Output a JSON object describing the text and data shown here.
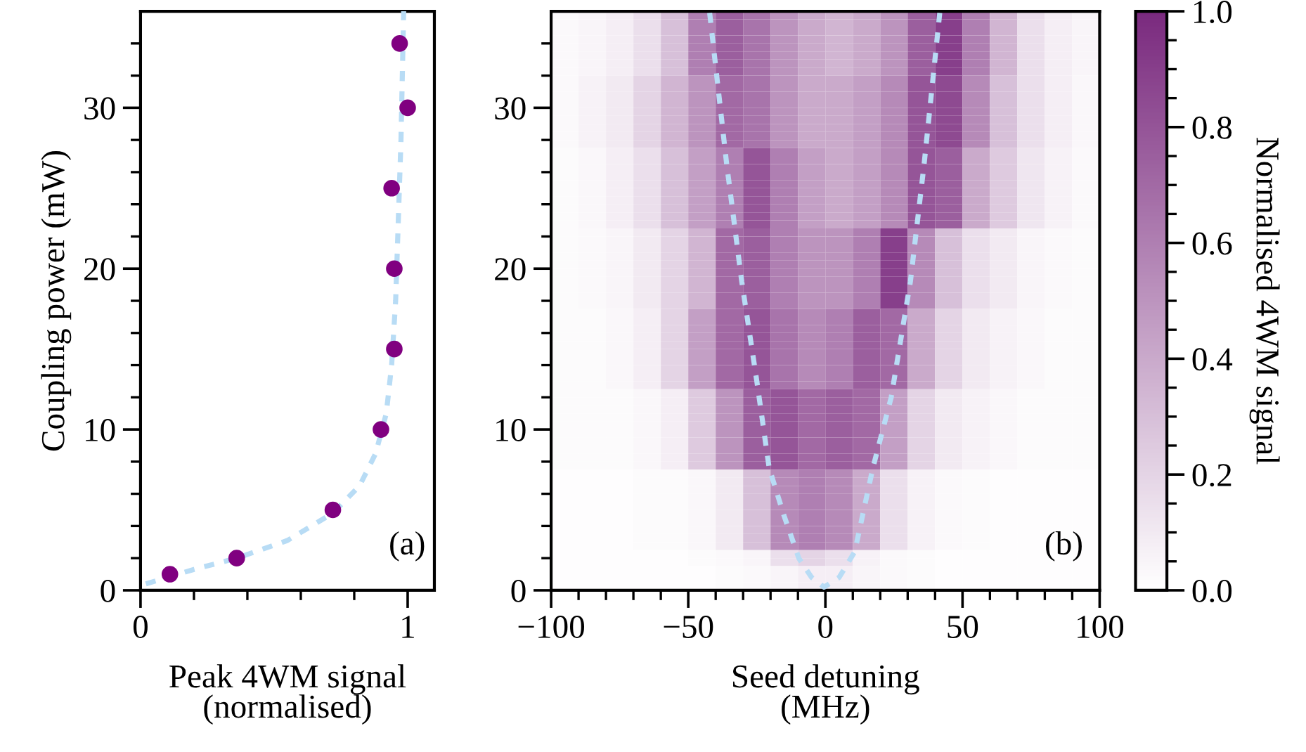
{
  "chart_data": [
    {
      "type": "scatter",
      "xlabel": "Peak 4WM signal\n(normalised)",
      "ylabel": "Coupling power (mW)",
      "annotations": [
        "(a)"
      ],
      "xlim": [
        0,
        1.1
      ],
      "ylim": [
        0,
        36
      ],
      "xticks": [
        0,
        {
          "value": 0.2,
          "label": null
        },
        {
          "value": 0.4,
          "label": null
        },
        {
          "value": 0.6,
          "label": null
        },
        {
          "value": 0.8,
          "label": null
        },
        1
      ],
      "yticks": [
        0,
        {
          "value": 2,
          "label": null
        },
        {
          "value": 4,
          "label": null
        },
        {
          "value": 6,
          "label": null
        },
        {
          "value": 8,
          "label": null
        },
        10,
        {
          "value": 12,
          "label": null
        },
        {
          "value": 14,
          "label": null
        },
        {
          "value": 16,
          "label": null
        },
        {
          "value": 18,
          "label": null
        },
        20,
        {
          "value": 22,
          "label": null
        },
        {
          "value": 24,
          "label": null
        },
        {
          "value": 26,
          "label": null
        },
        {
          "value": 28,
          "label": null
        },
        30,
        {
          "value": 32,
          "label": null
        },
        {
          "value": 34,
          "label": null
        }
      ],
      "series": [
        {
          "type": "line",
          "line_style": "dashed",
          "color": "#b8dcf5",
          "x": [
            0.02,
            0.2,
            0.36,
            0.55,
            0.72,
            0.82,
            0.88,
            0.92,
            0.94,
            0.955,
            0.965,
            0.975,
            0.98,
            0.985
          ],
          "values": [
            0.4,
            1.3,
            2.0,
            3.1,
            4.8,
            6.5,
            8.5,
            11,
            14,
            18,
            23,
            28,
            32,
            36
          ]
        },
        {
          "type": "scatter",
          "marker": "circle",
          "color": "#800080",
          "x": [
            0.11,
            0.36,
            0.72,
            0.9,
            0.95,
            0.95,
            0.94,
            1.0,
            0.97
          ],
          "values": [
            1,
            2,
            5,
            10,
            15,
            20,
            25,
            30,
            34
          ]
        }
      ]
    },
    {
      "type": "heatmap",
      "xlabel": "Seed detuning\n(MHz)",
      "clabel": "Normalised 4WM signal",
      "annotations": [
        "(b)"
      ],
      "xlim": [
        -100,
        100
      ],
      "ylim": [
        0,
        36
      ],
      "clim": [
        0,
        1
      ],
      "colors": [
        "#ffffff",
        "#7a2a7e"
      ],
      "xticks": [
        {
          "value": -100,
          "label": "−100"
        },
        {
          "value": -90,
          "label": null
        },
        {
          "value": -80,
          "label": null
        },
        {
          "value": -70,
          "label": null
        },
        {
          "value": -60,
          "label": null
        },
        {
          "value": -50,
          "label": "−50"
        },
        {
          "value": -40,
          "label": null
        },
        {
          "value": -30,
          "label": null
        },
        {
          "value": -20,
          "label": null
        },
        {
          "value": -10,
          "label": null
        },
        0,
        {
          "value": 10,
          "label": null
        },
        {
          "value": 20,
          "label": null
        },
        {
          "value": 30,
          "label": null
        },
        {
          "value": 40,
          "label": null
        },
        50,
        {
          "value": 60,
          "label": null
        },
        {
          "value": 70,
          "label": null
        },
        {
          "value": 80,
          "label": null
        },
        {
          "value": 90,
          "label": null
        },
        100
      ],
      "yticks": [
        0,
        {
          "value": 2,
          "label": null
        },
        {
          "value": 4,
          "label": null
        },
        {
          "value": 6,
          "label": null
        },
        {
          "value": 8,
          "label": null
        },
        10,
        {
          "value": 12,
          "label": null
        },
        {
          "value": 14,
          "label": null
        },
        {
          "value": 16,
          "label": null
        },
        {
          "value": 18,
          "label": null
        },
        20,
        {
          "value": 22,
          "label": null
        },
        {
          "value": 24,
          "label": null
        },
        {
          "value": 26,
          "label": null
        },
        {
          "value": 28,
          "label": null
        },
        30,
        {
          "value": 32,
          "label": null
        },
        {
          "value": 34,
          "label": null
        }
      ],
      "cticks": [
        {
          "value": 0,
          "label": "0.0"
        },
        {
          "value": 0.05,
          "label": null
        },
        {
          "value": 0.1,
          "label": null
        },
        {
          "value": 0.15,
          "label": null
        },
        {
          "value": 0.2,
          "label": "0.2"
        },
        {
          "value": 0.25,
          "label": null
        },
        {
          "value": 0.3,
          "label": null
        },
        {
          "value": 0.35,
          "label": null
        },
        {
          "value": 0.4,
          "label": "0.4"
        },
        {
          "value": 0.45,
          "label": null
        },
        {
          "value": 0.5,
          "label": null
        },
        {
          "value": 0.55,
          "label": null
        },
        {
          "value": 0.6,
          "label": "0.6"
        },
        {
          "value": 0.65,
          "label": null
        },
        {
          "value": 0.7,
          "label": null
        },
        {
          "value": 0.75,
          "label": null
        },
        {
          "value": 0.8,
          "label": "0.8"
        },
        {
          "value": 0.85,
          "label": null
        },
        {
          "value": 0.9,
          "label": null
        },
        {
          "value": 0.95,
          "label": null
        },
        {
          "value": 1.0,
          "label": "1.0"
        }
      ],
      "x": [
        -95,
        -85,
        -75,
        -65,
        -55,
        -45,
        -35,
        -25,
        -15,
        -5,
        5,
        15,
        25,
        35,
        45,
        55,
        65,
        75,
        85,
        95
      ],
      "cells": [
        [
          0.03,
          0.05,
          0.08,
          0.15,
          0.3,
          0.6,
          0.75,
          0.65,
          0.5,
          0.4,
          0.35,
          0.4,
          0.5,
          0.75,
          0.9,
          0.6,
          0.35,
          0.15,
          0.08,
          0.05
        ],
        [
          0.03,
          0.05,
          0.08,
          0.15,
          0.3,
          0.6,
          0.75,
          0.65,
          0.5,
          0.4,
          0.35,
          0.4,
          0.5,
          0.75,
          0.9,
          0.6,
          0.35,
          0.15,
          0.08,
          0.05
        ],
        [
          0.03,
          0.05,
          0.08,
          0.15,
          0.3,
          0.6,
          0.75,
          0.65,
          0.5,
          0.4,
          0.35,
          0.4,
          0.5,
          0.75,
          0.9,
          0.6,
          0.35,
          0.15,
          0.08,
          0.05
        ],
        [
          0.03,
          0.05,
          0.08,
          0.15,
          0.3,
          0.6,
          0.75,
          0.65,
          0.5,
          0.4,
          0.35,
          0.4,
          0.5,
          0.75,
          0.9,
          0.6,
          0.35,
          0.15,
          0.08,
          0.05
        ],
        [
          0.03,
          0.05,
          0.08,
          0.15,
          0.3,
          0.6,
          0.75,
          0.65,
          0.5,
          0.4,
          0.35,
          0.4,
          0.5,
          0.75,
          0.9,
          0.6,
          0.35,
          0.15,
          0.08,
          0.05
        ],
        [
          0.03,
          0.05,
          0.08,
          0.15,
          0.3,
          0.6,
          0.75,
          0.65,
          0.5,
          0.4,
          0.35,
          0.4,
          0.5,
          0.75,
          0.9,
          0.6,
          0.35,
          0.15,
          0.08,
          0.05
        ],
        [
          0.03,
          0.05,
          0.08,
          0.15,
          0.3,
          0.6,
          0.75,
          0.65,
          0.5,
          0.4,
          0.35,
          0.4,
          0.5,
          0.75,
          0.9,
          0.6,
          0.35,
          0.15,
          0.08,
          0.05
        ],
        [
          0.03,
          0.05,
          0.08,
          0.15,
          0.3,
          0.6,
          0.75,
          0.65,
          0.5,
          0.4,
          0.35,
          0.4,
          0.5,
          0.75,
          0.9,
          0.6,
          0.35,
          0.15,
          0.08,
          0.05
        ],
        [
          0.03,
          0.06,
          0.1,
          0.2,
          0.35,
          0.5,
          0.7,
          0.65,
          0.5,
          0.4,
          0.4,
          0.45,
          0.55,
          0.8,
          0.85,
          0.55,
          0.3,
          0.15,
          0.08,
          0.04
        ],
        [
          0.03,
          0.06,
          0.1,
          0.2,
          0.35,
          0.5,
          0.7,
          0.65,
          0.5,
          0.4,
          0.4,
          0.45,
          0.55,
          0.8,
          0.85,
          0.55,
          0.3,
          0.15,
          0.08,
          0.04
        ],
        [
          0.03,
          0.06,
          0.1,
          0.2,
          0.35,
          0.5,
          0.7,
          0.65,
          0.5,
          0.4,
          0.4,
          0.45,
          0.55,
          0.8,
          0.85,
          0.55,
          0.3,
          0.15,
          0.08,
          0.04
        ],
        [
          0.03,
          0.06,
          0.1,
          0.2,
          0.35,
          0.5,
          0.7,
          0.65,
          0.5,
          0.4,
          0.4,
          0.45,
          0.55,
          0.8,
          0.85,
          0.55,
          0.3,
          0.15,
          0.08,
          0.04
        ],
        [
          0.03,
          0.06,
          0.1,
          0.2,
          0.35,
          0.5,
          0.7,
          0.65,
          0.5,
          0.4,
          0.4,
          0.45,
          0.55,
          0.8,
          0.85,
          0.55,
          0.3,
          0.15,
          0.08,
          0.04
        ],
        [
          0.03,
          0.06,
          0.1,
          0.2,
          0.35,
          0.5,
          0.7,
          0.65,
          0.5,
          0.4,
          0.4,
          0.45,
          0.55,
          0.8,
          0.85,
          0.55,
          0.3,
          0.15,
          0.08,
          0.04
        ],
        [
          0.03,
          0.06,
          0.1,
          0.2,
          0.35,
          0.5,
          0.7,
          0.65,
          0.5,
          0.4,
          0.4,
          0.45,
          0.55,
          0.8,
          0.85,
          0.55,
          0.3,
          0.15,
          0.08,
          0.04
        ],
        [
          0.03,
          0.06,
          0.1,
          0.2,
          0.35,
          0.5,
          0.7,
          0.65,
          0.5,
          0.4,
          0.4,
          0.45,
          0.55,
          0.8,
          0.85,
          0.55,
          0.3,
          0.15,
          0.08,
          0.04
        ],
        [
          0.03,
          0.06,
          0.1,
          0.2,
          0.35,
          0.5,
          0.7,
          0.65,
          0.5,
          0.4,
          0.4,
          0.45,
          0.55,
          0.8,
          0.85,
          0.55,
          0.3,
          0.15,
          0.08,
          0.04
        ],
        [
          0.02,
          0.04,
          0.08,
          0.15,
          0.3,
          0.45,
          0.6,
          0.8,
          0.6,
          0.45,
          0.4,
          0.45,
          0.55,
          0.8,
          0.75,
          0.4,
          0.25,
          0.12,
          0.06,
          0.03
        ],
        [
          0.02,
          0.04,
          0.08,
          0.15,
          0.3,
          0.45,
          0.6,
          0.8,
          0.6,
          0.45,
          0.4,
          0.45,
          0.55,
          0.8,
          0.75,
          0.4,
          0.25,
          0.12,
          0.06,
          0.03
        ],
        [
          0.02,
          0.04,
          0.08,
          0.15,
          0.3,
          0.45,
          0.6,
          0.8,
          0.6,
          0.45,
          0.4,
          0.45,
          0.55,
          0.8,
          0.75,
          0.4,
          0.25,
          0.12,
          0.06,
          0.03
        ],
        [
          0.02,
          0.04,
          0.08,
          0.15,
          0.3,
          0.45,
          0.6,
          0.8,
          0.6,
          0.45,
          0.4,
          0.45,
          0.55,
          0.8,
          0.75,
          0.4,
          0.25,
          0.12,
          0.06,
          0.03
        ],
        [
          0.02,
          0.04,
          0.08,
          0.15,
          0.3,
          0.45,
          0.6,
          0.8,
          0.6,
          0.45,
          0.4,
          0.45,
          0.55,
          0.8,
          0.75,
          0.4,
          0.25,
          0.12,
          0.06,
          0.03
        ],
        [
          0.02,
          0.04,
          0.08,
          0.15,
          0.3,
          0.45,
          0.6,
          0.8,
          0.6,
          0.45,
          0.4,
          0.45,
          0.55,
          0.8,
          0.75,
          0.4,
          0.25,
          0.12,
          0.06,
          0.03
        ],
        [
          0.02,
          0.04,
          0.08,
          0.15,
          0.3,
          0.45,
          0.6,
          0.8,
          0.6,
          0.45,
          0.4,
          0.45,
          0.55,
          0.8,
          0.75,
          0.4,
          0.25,
          0.12,
          0.06,
          0.03
        ],
        [
          0.02,
          0.04,
          0.08,
          0.15,
          0.3,
          0.45,
          0.6,
          0.8,
          0.6,
          0.45,
          0.4,
          0.45,
          0.55,
          0.8,
          0.75,
          0.4,
          0.25,
          0.12,
          0.06,
          0.03
        ],
        [
          0.02,
          0.04,
          0.08,
          0.15,
          0.3,
          0.45,
          0.6,
          0.8,
          0.6,
          0.45,
          0.4,
          0.45,
          0.55,
          0.8,
          0.75,
          0.4,
          0.25,
          0.12,
          0.06,
          0.03
        ],
        [
          0.02,
          0.04,
          0.08,
          0.15,
          0.3,
          0.45,
          0.6,
          0.8,
          0.6,
          0.45,
          0.4,
          0.45,
          0.55,
          0.8,
          0.75,
          0.4,
          0.25,
          0.12,
          0.06,
          0.03
        ],
        [
          0.02,
          0.03,
          0.05,
          0.1,
          0.2,
          0.35,
          0.7,
          0.75,
          0.6,
          0.5,
          0.5,
          0.6,
          0.9,
          0.55,
          0.3,
          0.15,
          0.1,
          0.05,
          0.03,
          0.02
        ],
        [
          0.02,
          0.03,
          0.05,
          0.1,
          0.2,
          0.35,
          0.7,
          0.75,
          0.6,
          0.5,
          0.5,
          0.6,
          0.9,
          0.55,
          0.3,
          0.15,
          0.1,
          0.05,
          0.03,
          0.02
        ],
        [
          0.02,
          0.03,
          0.05,
          0.1,
          0.2,
          0.35,
          0.7,
          0.75,
          0.6,
          0.5,
          0.5,
          0.6,
          0.9,
          0.55,
          0.3,
          0.15,
          0.1,
          0.05,
          0.03,
          0.02
        ],
        [
          0.02,
          0.03,
          0.05,
          0.1,
          0.2,
          0.35,
          0.7,
          0.75,
          0.6,
          0.5,
          0.5,
          0.6,
          0.9,
          0.55,
          0.3,
          0.15,
          0.1,
          0.05,
          0.03,
          0.02
        ],
        [
          0.02,
          0.03,
          0.05,
          0.1,
          0.2,
          0.35,
          0.7,
          0.75,
          0.6,
          0.5,
          0.5,
          0.6,
          0.9,
          0.55,
          0.3,
          0.15,
          0.1,
          0.05,
          0.03,
          0.02
        ],
        [
          0.02,
          0.03,
          0.05,
          0.1,
          0.2,
          0.35,
          0.7,
          0.75,
          0.6,
          0.5,
          0.5,
          0.6,
          0.9,
          0.55,
          0.3,
          0.15,
          0.1,
          0.05,
          0.03,
          0.02
        ],
        [
          0.02,
          0.03,
          0.05,
          0.1,
          0.2,
          0.35,
          0.7,
          0.75,
          0.6,
          0.5,
          0.5,
          0.6,
          0.9,
          0.55,
          0.3,
          0.15,
          0.1,
          0.05,
          0.03,
          0.02
        ],
        [
          0.02,
          0.03,
          0.05,
          0.1,
          0.2,
          0.35,
          0.7,
          0.75,
          0.6,
          0.5,
          0.5,
          0.6,
          0.9,
          0.55,
          0.3,
          0.15,
          0.1,
          0.05,
          0.03,
          0.02
        ],
        [
          0.02,
          0.03,
          0.05,
          0.1,
          0.2,
          0.35,
          0.7,
          0.75,
          0.6,
          0.5,
          0.5,
          0.6,
          0.9,
          0.55,
          0.3,
          0.15,
          0.1,
          0.05,
          0.03,
          0.02
        ],
        [
          0.02,
          0.03,
          0.05,
          0.1,
          0.2,
          0.35,
          0.7,
          0.75,
          0.6,
          0.5,
          0.5,
          0.6,
          0.9,
          0.55,
          0.3,
          0.15,
          0.1,
          0.05,
          0.03,
          0.02
        ],
        [
          0.02,
          0.02,
          0.04,
          0.08,
          0.2,
          0.45,
          0.7,
          0.8,
          0.65,
          0.55,
          0.6,
          0.75,
          0.7,
          0.4,
          0.2,
          0.1,
          0.06,
          0.04,
          0.02,
          0.02
        ],
        [
          0.02,
          0.02,
          0.04,
          0.08,
          0.2,
          0.45,
          0.7,
          0.8,
          0.65,
          0.55,
          0.6,
          0.75,
          0.7,
          0.4,
          0.2,
          0.1,
          0.06,
          0.04,
          0.02,
          0.02
        ],
        [
          0.02,
          0.02,
          0.04,
          0.08,
          0.2,
          0.45,
          0.7,
          0.8,
          0.65,
          0.55,
          0.6,
          0.75,
          0.7,
          0.4,
          0.2,
          0.1,
          0.06,
          0.04,
          0.02,
          0.02
        ],
        [
          0.02,
          0.02,
          0.04,
          0.08,
          0.2,
          0.45,
          0.7,
          0.8,
          0.65,
          0.55,
          0.6,
          0.75,
          0.7,
          0.4,
          0.2,
          0.1,
          0.06,
          0.04,
          0.02,
          0.02
        ],
        [
          0.02,
          0.02,
          0.04,
          0.08,
          0.2,
          0.45,
          0.7,
          0.8,
          0.65,
          0.55,
          0.6,
          0.75,
          0.7,
          0.4,
          0.2,
          0.1,
          0.06,
          0.04,
          0.02,
          0.02
        ],
        [
          0.02,
          0.02,
          0.04,
          0.08,
          0.2,
          0.45,
          0.7,
          0.8,
          0.65,
          0.55,
          0.6,
          0.75,
          0.7,
          0.4,
          0.2,
          0.1,
          0.06,
          0.04,
          0.02,
          0.02
        ],
        [
          0.02,
          0.02,
          0.04,
          0.08,
          0.2,
          0.45,
          0.7,
          0.8,
          0.65,
          0.55,
          0.6,
          0.75,
          0.7,
          0.4,
          0.2,
          0.1,
          0.06,
          0.04,
          0.02,
          0.02
        ],
        [
          0.02,
          0.02,
          0.04,
          0.08,
          0.2,
          0.45,
          0.7,
          0.8,
          0.65,
          0.55,
          0.6,
          0.75,
          0.7,
          0.4,
          0.2,
          0.1,
          0.06,
          0.04,
          0.02,
          0.02
        ],
        [
          0.02,
          0.02,
          0.04,
          0.08,
          0.2,
          0.45,
          0.7,
          0.8,
          0.65,
          0.55,
          0.6,
          0.75,
          0.7,
          0.4,
          0.2,
          0.1,
          0.06,
          0.04,
          0.02,
          0.02
        ],
        [
          0.02,
          0.02,
          0.04,
          0.08,
          0.2,
          0.45,
          0.7,
          0.8,
          0.65,
          0.55,
          0.6,
          0.75,
          0.7,
          0.4,
          0.2,
          0.1,
          0.06,
          0.04,
          0.02,
          0.02
        ],
        [
          0.02,
          0.02,
          0.02,
          0.04,
          0.08,
          0.25,
          0.5,
          0.75,
          0.8,
          0.7,
          0.75,
          0.7,
          0.45,
          0.2,
          0.1,
          0.06,
          0.04,
          0.02,
          0.02,
          0.02
        ],
        [
          0.02,
          0.02,
          0.02,
          0.04,
          0.08,
          0.25,
          0.5,
          0.75,
          0.8,
          0.7,
          0.75,
          0.7,
          0.45,
          0.2,
          0.1,
          0.06,
          0.04,
          0.02,
          0.02,
          0.02
        ],
        [
          0.02,
          0.02,
          0.02,
          0.04,
          0.08,
          0.25,
          0.5,
          0.75,
          0.8,
          0.7,
          0.75,
          0.7,
          0.45,
          0.2,
          0.1,
          0.06,
          0.04,
          0.02,
          0.02,
          0.02
        ],
        [
          0.02,
          0.02,
          0.02,
          0.04,
          0.08,
          0.25,
          0.5,
          0.75,
          0.8,
          0.7,
          0.75,
          0.7,
          0.45,
          0.2,
          0.1,
          0.06,
          0.04,
          0.02,
          0.02,
          0.02
        ],
        [
          0.02,
          0.02,
          0.02,
          0.04,
          0.08,
          0.25,
          0.5,
          0.75,
          0.8,
          0.7,
          0.75,
          0.7,
          0.45,
          0.2,
          0.1,
          0.06,
          0.04,
          0.02,
          0.02,
          0.02
        ],
        [
          0.02,
          0.02,
          0.02,
          0.04,
          0.08,
          0.25,
          0.5,
          0.75,
          0.8,
          0.7,
          0.75,
          0.7,
          0.45,
          0.2,
          0.1,
          0.06,
          0.04,
          0.02,
          0.02,
          0.02
        ],
        [
          0.02,
          0.02,
          0.02,
          0.04,
          0.08,
          0.25,
          0.5,
          0.75,
          0.8,
          0.7,
          0.75,
          0.7,
          0.45,
          0.2,
          0.1,
          0.06,
          0.04,
          0.02,
          0.02,
          0.02
        ],
        [
          0.02,
          0.02,
          0.02,
          0.04,
          0.08,
          0.25,
          0.5,
          0.75,
          0.8,
          0.7,
          0.75,
          0.7,
          0.45,
          0.2,
          0.1,
          0.06,
          0.04,
          0.02,
          0.02,
          0.02
        ],
        [
          0.02,
          0.02,
          0.02,
          0.04,
          0.08,
          0.25,
          0.5,
          0.75,
          0.8,
          0.7,
          0.75,
          0.7,
          0.45,
          0.2,
          0.1,
          0.06,
          0.04,
          0.02,
          0.02,
          0.02
        ],
        [
          0.02,
          0.02,
          0.02,
          0.04,
          0.08,
          0.25,
          0.5,
          0.75,
          0.8,
          0.7,
          0.75,
          0.7,
          0.45,
          0.2,
          0.1,
          0.06,
          0.04,
          0.02,
          0.02,
          0.02
        ],
        [
          0.01,
          0.01,
          0.01,
          0.02,
          0.02,
          0.04,
          0.1,
          0.3,
          0.55,
          0.6,
          0.55,
          0.4,
          0.15,
          0.06,
          0.03,
          0.02,
          0.01,
          0.01,
          0.01,
          0.01
        ],
        [
          0.01,
          0.01,
          0.01,
          0.02,
          0.02,
          0.04,
          0.1,
          0.3,
          0.55,
          0.6,
          0.55,
          0.4,
          0.15,
          0.06,
          0.03,
          0.02,
          0.01,
          0.01,
          0.01,
          0.01
        ],
        [
          0.01,
          0.01,
          0.01,
          0.02,
          0.02,
          0.04,
          0.1,
          0.3,
          0.55,
          0.6,
          0.55,
          0.4,
          0.15,
          0.06,
          0.03,
          0.02,
          0.01,
          0.01,
          0.01,
          0.01
        ],
        [
          0.01,
          0.01,
          0.01,
          0.02,
          0.02,
          0.04,
          0.1,
          0.3,
          0.55,
          0.6,
          0.55,
          0.4,
          0.15,
          0.06,
          0.03,
          0.02,
          0.01,
          0.01,
          0.01,
          0.01
        ],
        [
          0.01,
          0.01,
          0.01,
          0.02,
          0.02,
          0.04,
          0.1,
          0.3,
          0.55,
          0.6,
          0.55,
          0.4,
          0.15,
          0.06,
          0.03,
          0.02,
          0.01,
          0.01,
          0.01,
          0.01
        ],
        [
          0.01,
          0.01,
          0.01,
          0.02,
          0.02,
          0.04,
          0.1,
          0.3,
          0.55,
          0.6,
          0.55,
          0.4,
          0.15,
          0.06,
          0.03,
          0.02,
          0.01,
          0.01,
          0.01,
          0.01
        ],
        [
          0.01,
          0.01,
          0.01,
          0.02,
          0.02,
          0.04,
          0.1,
          0.3,
          0.55,
          0.6,
          0.55,
          0.4,
          0.15,
          0.06,
          0.03,
          0.02,
          0.01,
          0.01,
          0.01,
          0.01
        ],
        [
          0.01,
          0.01,
          0.01,
          0.02,
          0.02,
          0.04,
          0.1,
          0.3,
          0.55,
          0.6,
          0.55,
          0.4,
          0.15,
          0.06,
          0.03,
          0.02,
          0.01,
          0.01,
          0.01,
          0.01
        ],
        [
          0.01,
          0.01,
          0.01,
          0.02,
          0.02,
          0.04,
          0.1,
          0.3,
          0.55,
          0.6,
          0.55,
          0.4,
          0.15,
          0.06,
          0.03,
          0.02,
          0.01,
          0.01,
          0.01,
          0.01
        ],
        [
          0.01,
          0.01,
          0.01,
          0.02,
          0.02,
          0.04,
          0.1,
          0.3,
          0.55,
          0.6,
          0.55,
          0.4,
          0.15,
          0.06,
          0.03,
          0.02,
          0.01,
          0.01,
          0.01,
          0.01
        ],
        [
          0.01,
          0.01,
          0.01,
          0.01,
          0.01,
          0.02,
          0.03,
          0.05,
          0.15,
          0.2,
          0.15,
          0.06,
          0.03,
          0.02,
          0.01,
          0.01,
          0.01,
          0.01,
          0.01,
          0.01
        ],
        [
          0.01,
          0.01,
          0.01,
          0.01,
          0.01,
          0.02,
          0.03,
          0.05,
          0.15,
          0.2,
          0.15,
          0.06,
          0.03,
          0.02,
          0.01,
          0.01,
          0.01,
          0.01,
          0.01,
          0.01
        ],
        [
          0.01,
          0.01,
          0.01,
          0.01,
          0.01,
          0.01,
          0.02,
          0.03,
          0.05,
          0.08,
          0.08,
          0.05,
          0.03,
          0.02,
          0.01,
          0.01,
          0.01,
          0.01,
          0.01,
          0.01
        ],
        [
          0.01,
          0.01,
          0.01,
          0.01,
          0.01,
          0.01,
          0.02,
          0.03,
          0.05,
          0.08,
          0.08,
          0.05,
          0.03,
          0.02,
          0.01,
          0.01,
          0.01,
          0.01,
          0.01,
          0.01
        ],
        [
          0.01,
          0.01,
          0.01,
          0.01,
          0.01,
          0.01,
          0.02,
          0.03,
          0.05,
          0.08,
          0.08,
          0.05,
          0.03,
          0.02,
          0.01,
          0.01,
          0.01,
          0.01,
          0.01,
          0.01
        ]
      ],
      "series": [
        {
          "type": "line",
          "line_style": "dashed",
          "color": "#b8dcf5",
          "x": [
            -42.2,
            -36,
            -30.5,
            -25,
            -20.5,
            -15,
            -9.7,
            -5,
            -0.5,
            5,
            10.7,
            17.3,
            24,
            31,
            36,
            41.7
          ],
          "values": [
            35.9,
            26.5,
            19.2,
            13.0,
            7.6,
            4.6,
            2.0,
            0.8,
            0.2,
            0.8,
            2.4,
            7.6,
            12.0,
            19.2,
            26.5,
            35.9
          ]
        }
      ]
    }
  ]
}
